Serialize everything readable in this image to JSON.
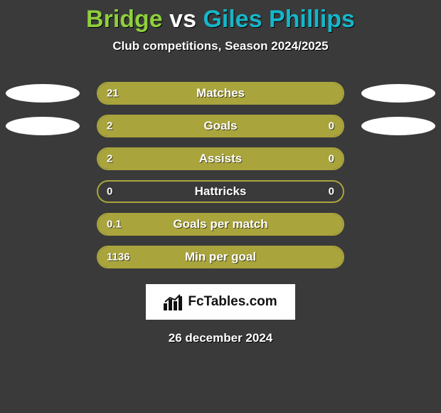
{
  "background_color": "#3a3a3a",
  "title": {
    "player1": "Bridge",
    "vs": "vs",
    "player2": "Giles Phillips",
    "player1_color": "#8fcf3c",
    "vs_color": "#ffffff",
    "player2_color": "#16b6c9",
    "fontsize": 34
  },
  "subtitle": {
    "text": "Club competitions, Season 2024/2025",
    "color": "#ffffff",
    "fontsize": 17
  },
  "oval": {
    "left_color": "#ffffff",
    "right_color": "#ffffff",
    "width": 104,
    "height": 26
  },
  "bar": {
    "track_width": 348,
    "track_height": 32,
    "border_color": "#a9a43c",
    "border_width": 2,
    "left_fill": "#a9a43c",
    "right_fill": "#a9a43c",
    "label_color": "#ffffff",
    "value_color": "#ffffff",
    "label_fontsize": 17,
    "value_fontsize": 15
  },
  "rows": [
    {
      "metric": "Matches",
      "left_val": "21",
      "right_val": "",
      "left_pct": 100,
      "right_pct": 0,
      "show_left_oval": true,
      "show_right_oval": true
    },
    {
      "metric": "Goals",
      "left_val": "2",
      "right_val": "0",
      "left_pct": 76,
      "right_pct": 24,
      "show_left_oval": true,
      "show_right_oval": true
    },
    {
      "metric": "Assists",
      "left_val": "2",
      "right_val": "0",
      "left_pct": 76,
      "right_pct": 24,
      "show_left_oval": false,
      "show_right_oval": false
    },
    {
      "metric": "Hattricks",
      "left_val": "0",
      "right_val": "0",
      "left_pct": 0,
      "right_pct": 0,
      "show_left_oval": false,
      "show_right_oval": false
    },
    {
      "metric": "Goals per match",
      "left_val": "0.1",
      "right_val": "",
      "left_pct": 100,
      "right_pct": 0,
      "show_left_oval": false,
      "show_right_oval": false
    },
    {
      "metric": "Min per goal",
      "left_val": "1136",
      "right_val": "",
      "left_pct": 100,
      "right_pct": 0,
      "show_left_oval": false,
      "show_right_oval": false
    }
  ],
  "logo": {
    "text": "FcTables.com",
    "text_color": "#111111",
    "plate_bg": "#ffffff",
    "fontsize": 19
  },
  "date": {
    "text": "26 december 2024",
    "color": "#ffffff",
    "fontsize": 17
  }
}
